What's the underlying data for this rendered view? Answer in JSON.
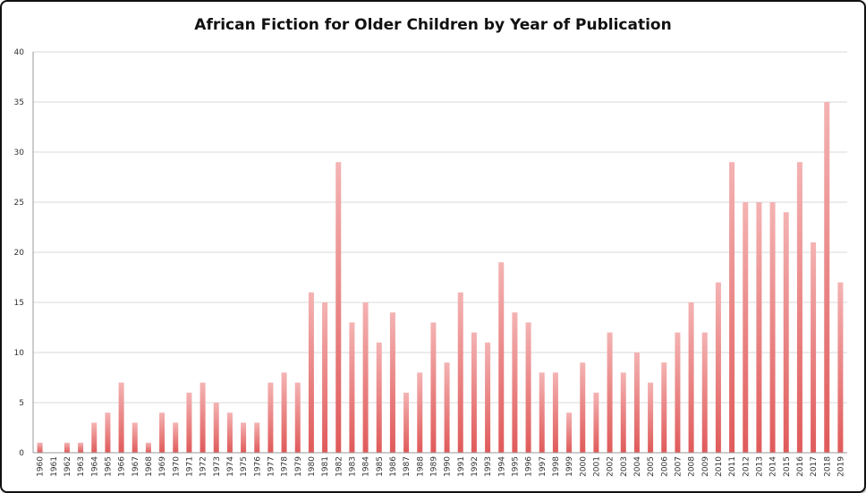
{
  "chart_data": {
    "type": "bar",
    "title": "African Fiction for Older Children by Year of Publication",
    "xlabel": "",
    "ylabel": "",
    "ylim": [
      0,
      40
    ],
    "yticks": [
      0,
      5,
      10,
      15,
      20,
      25,
      30,
      35,
      40
    ],
    "grid": true,
    "legend": "none",
    "bar_color": "#e05a5a",
    "bar_color_light": "#f4b3b3",
    "categories": [
      "1960",
      "1961",
      "1962",
      "1963",
      "1964",
      "1965",
      "1966",
      "1967",
      "1968",
      "1969",
      "1970",
      "1971",
      "1972",
      "1973",
      "1974",
      "1975",
      "1976",
      "1977",
      "1978",
      "1979",
      "1980",
      "1981",
      "1982",
      "1983",
      "1984",
      "1985",
      "1986",
      "1987",
      "1988",
      "1989",
      "1990",
      "1991",
      "1992",
      "1993",
      "1994",
      "1995",
      "1996",
      "1997",
      "1998",
      "1999",
      "2000",
      "2001",
      "2002",
      "2003",
      "2004",
      "2005",
      "2006",
      "2007",
      "2008",
      "2009",
      "2010",
      "2011",
      "2012",
      "2013",
      "2014",
      "2015",
      "2016",
      "2017",
      "2018",
      "2019"
    ],
    "values": [
      1,
      0,
      1,
      1,
      3,
      4,
      7,
      3,
      1,
      4,
      3,
      6,
      7,
      5,
      4,
      3,
      3,
      7,
      8,
      7,
      16,
      15,
      29,
      13,
      15,
      11,
      14,
      6,
      8,
      13,
      9,
      16,
      12,
      11,
      19,
      14,
      13,
      8,
      8,
      4,
      9,
      6,
      12,
      8,
      10,
      7,
      9,
      12,
      15,
      12,
      17,
      29,
      25,
      25,
      25,
      24,
      29,
      21,
      35,
      17
    ]
  }
}
